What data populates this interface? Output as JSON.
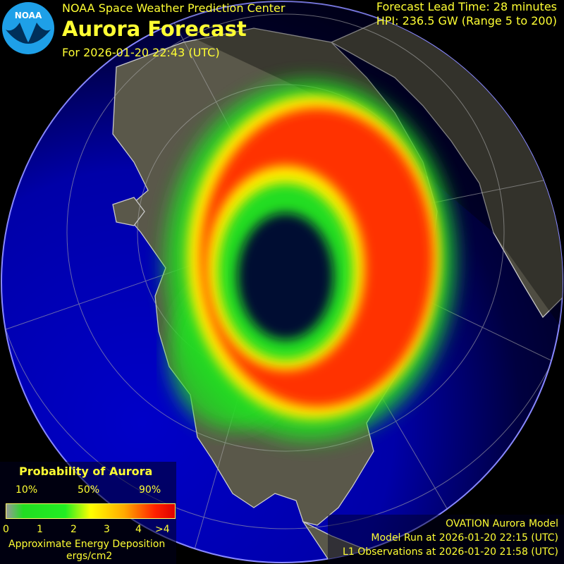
{
  "header": {
    "organization": "NOAA Space Weather Prediction Center",
    "title": "Aurora Forecast",
    "forecast_for": "For 2026-01-20 22:43 (UTC)",
    "lead_time": "Forecast Lead Time:  28 minutes",
    "hpi": "HPI: 236.5 GW (Range 5 to 200)"
  },
  "logo": {
    "text": "NOAA"
  },
  "legend": {
    "title": "Probability of Aurora",
    "percent_labels": [
      "10%",
      "50%",
      "90%"
    ],
    "energy_ticks": [
      "0",
      "1",
      "2",
      "3",
      "4",
      ">4"
    ],
    "energy_label": "Approximate Energy Deposition",
    "energy_units": "ergs/cm2"
  },
  "model_info": {
    "model": "OVATION Aurora Model",
    "model_run": "Model Run at 2026-01-20 22:15 (UTC)",
    "observations": "L1 Observations at 2026-01-20 21:58 (UTC)"
  },
  "colors": {
    "text": "#ffff33",
    "ocean": "#0000b0",
    "land": "#5a584a",
    "aurora_high": "#ff3300",
    "aurora_low": "#22dd22"
  }
}
